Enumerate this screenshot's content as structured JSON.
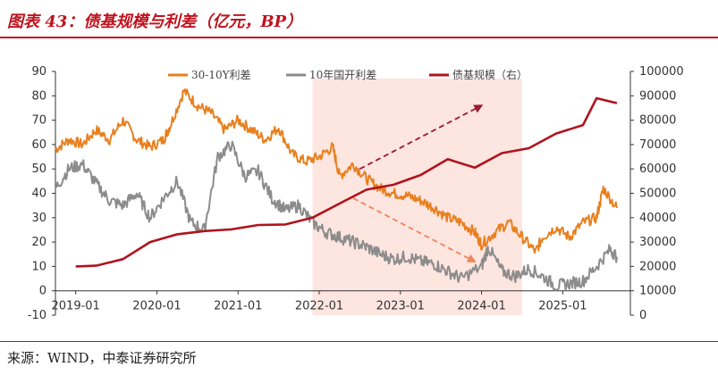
{
  "header": {
    "title": "图表 43：债基规模与利差（亿元，BP）",
    "source": "来源：WIND，中泰证券研究所"
  },
  "chart_data": {
    "type": "line",
    "legend": {
      "placement": "top",
      "entries": [
        "30-10Y利差",
        "10年国开利差",
        "债基规模（右）"
      ]
    },
    "x_ticks": [
      "2019-01",
      "2020-01",
      "2021-01",
      "2022-01",
      "2023-01",
      "2024-01",
      "2025-01"
    ],
    "left_axis": {
      "ticks": [
        "-10",
        "0",
        "10",
        "20",
        "30",
        "40",
        "50",
        "60",
        "70",
        "80",
        "90"
      ],
      "range": [
        -10,
        90
      ]
    },
    "right_axis": {
      "ticks": [
        "0",
        "10000",
        "20000",
        "30000",
        "40000",
        "50000",
        "60000",
        "70000",
        "80000",
        "90000",
        "100000"
      ],
      "range": [
        0,
        100000
      ]
    },
    "shaded_period": [
      "2021-12",
      "2024-07"
    ],
    "series": [
      {
        "name": "30-10Y利差",
        "axis": "left",
        "color": "#e8801e",
        "points": [
          [
            "2018-10",
            58
          ],
          [
            "2018-12",
            62
          ],
          [
            "2019-02",
            60
          ],
          [
            "2019-04",
            66
          ],
          [
            "2019-06",
            62
          ],
          [
            "2019-08",
            70
          ],
          [
            "2019-10",
            62
          ],
          [
            "2019-12",
            59
          ],
          [
            "2020-02",
            62
          ],
          [
            "2020-03",
            68
          ],
          [
            "2020-05",
            82
          ],
          [
            "2020-07",
            76
          ],
          [
            "2020-09",
            73
          ],
          [
            "2020-11",
            66
          ],
          [
            "2021-01",
            70
          ],
          [
            "2021-03",
            66
          ],
          [
            "2021-05",
            62
          ],
          [
            "2021-07",
            67
          ],
          [
            "2021-09",
            56
          ],
          [
            "2021-11",
            53
          ],
          [
            "2022-01",
            55
          ],
          [
            "2022-03",
            59
          ],
          [
            "2022-04",
            47
          ],
          [
            "2022-06",
            52
          ],
          [
            "2022-08",
            46
          ],
          [
            "2022-10",
            42
          ],
          [
            "2022-12",
            40
          ],
          [
            "2023-02",
            39
          ],
          [
            "2023-04",
            37
          ],
          [
            "2023-06",
            34
          ],
          [
            "2023-08",
            30
          ],
          [
            "2023-10",
            28
          ],
          [
            "2023-12",
            24
          ],
          [
            "2024-01",
            19
          ],
          [
            "2024-03",
            24
          ],
          [
            "2024-05",
            28
          ],
          [
            "2024-07",
            22
          ],
          [
            "2024-09",
            16
          ],
          [
            "2024-10",
            22
          ],
          [
            "2024-12",
            26
          ],
          [
            "2025-02",
            22
          ],
          [
            "2025-04",
            28
          ],
          [
            "2025-06",
            30
          ],
          [
            "2025-07",
            42
          ],
          [
            "2025-09",
            34
          ]
        ]
      },
      {
        "name": "10年国开利差",
        "axis": "left",
        "color": "#8c8c8c",
        "points": [
          [
            "2018-10",
            42
          ],
          [
            "2018-12",
            50
          ],
          [
            "2019-02",
            52
          ],
          [
            "2019-04",
            44
          ],
          [
            "2019-06",
            37
          ],
          [
            "2019-08",
            35
          ],
          [
            "2019-10",
            40
          ],
          [
            "2019-12",
            30
          ],
          [
            "2020-02",
            38
          ],
          [
            "2020-04",
            45
          ],
          [
            "2020-06",
            28
          ],
          [
            "2020-08",
            25
          ],
          [
            "2020-10",
            55
          ],
          [
            "2020-12",
            60
          ],
          [
            "2021-02",
            47
          ],
          [
            "2021-04",
            49
          ],
          [
            "2021-06",
            38
          ],
          [
            "2021-08",
            33
          ],
          [
            "2021-10",
            35
          ],
          [
            "2021-12",
            28
          ],
          [
            "2022-02",
            24
          ],
          [
            "2022-04",
            22
          ],
          [
            "2022-06",
            20
          ],
          [
            "2022-08",
            18
          ],
          [
            "2022-10",
            15
          ],
          [
            "2022-12",
            13
          ],
          [
            "2023-02",
            14
          ],
          [
            "2023-04",
            12
          ],
          [
            "2023-06",
            11
          ],
          [
            "2023-08",
            8
          ],
          [
            "2023-10",
            5
          ],
          [
            "2024-01",
            10
          ],
          [
            "2024-02",
            18
          ],
          [
            "2024-04",
            8
          ],
          [
            "2024-06",
            6
          ],
          [
            "2024-08",
            9
          ],
          [
            "2024-10",
            6
          ],
          [
            "2024-12",
            2
          ],
          [
            "2025-02",
            3
          ],
          [
            "2025-04",
            4
          ],
          [
            "2025-06",
            10
          ],
          [
            "2025-08",
            17
          ],
          [
            "2025-09",
            14
          ]
        ]
      },
      {
        "name": "债基规模（右）",
        "axis": "right",
        "color": "#b0131d",
        "points": [
          [
            "2019-01",
            20000
          ],
          [
            "2019-04",
            20300
          ],
          [
            "2019-08",
            23000
          ],
          [
            "2019-12",
            30000
          ],
          [
            "2020-04",
            33200
          ],
          [
            "2020-08",
            34500
          ],
          [
            "2020-12",
            35200
          ],
          [
            "2021-04",
            37000
          ],
          [
            "2021-08",
            37200
          ],
          [
            "2021-12",
            40000
          ],
          [
            "2022-04",
            45800
          ],
          [
            "2022-08",
            51500
          ],
          [
            "2022-12",
            53500
          ],
          [
            "2023-04",
            57500
          ],
          [
            "2023-08",
            64000
          ],
          [
            "2023-12",
            60500
          ],
          [
            "2024-04",
            66500
          ],
          [
            "2024-08",
            68500
          ],
          [
            "2024-12",
            74500
          ],
          [
            "2025-04",
            78000
          ],
          [
            "2025-06",
            89000
          ],
          [
            "2025-09",
            87000
          ]
        ]
      }
    ],
    "annotations": [
      {
        "type": "arrow",
        "color": "#9b1b2d",
        "dash": true,
        "from": [
          "2022-07",
          50
        ],
        "to": [
          "2024-01",
          76
        ]
      },
      {
        "type": "arrow",
        "color": "#f0855a",
        "dash": true,
        "from": [
          "2022-06",
          38
        ],
        "to": [
          "2023-12",
          12
        ]
      }
    ]
  }
}
